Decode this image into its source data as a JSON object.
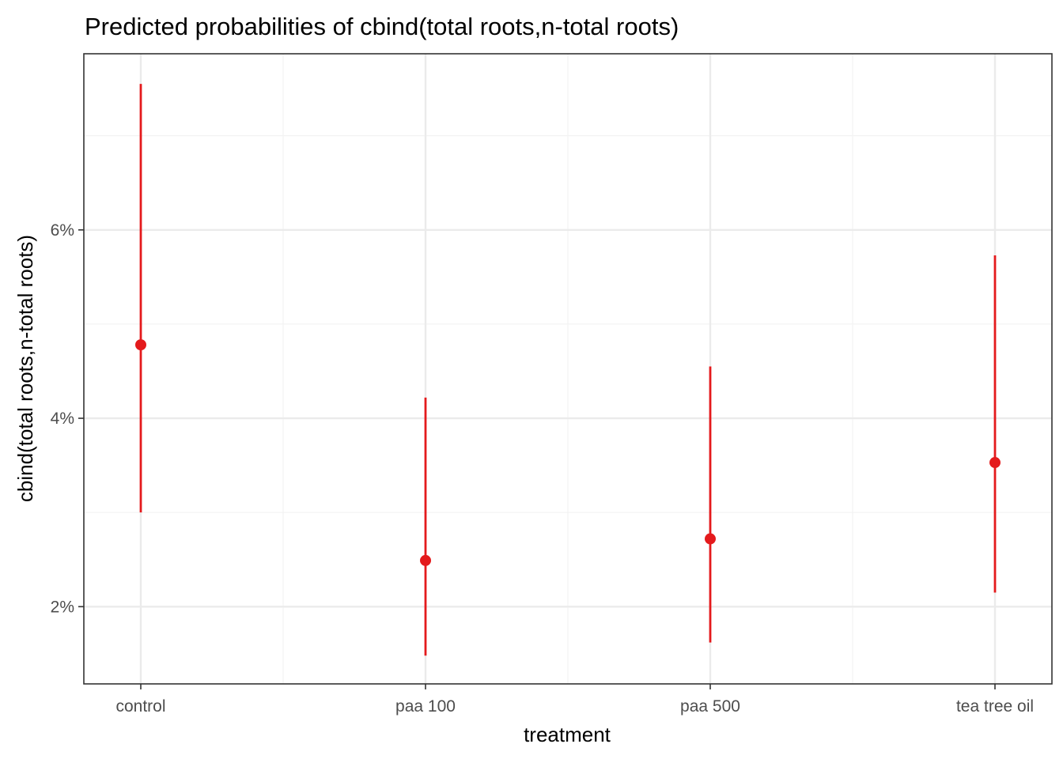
{
  "chart_data": {
    "type": "scatter",
    "title": "Predicted probabilities of cbind(total roots,n-total roots)",
    "xlabel": "treatment",
    "ylabel": "cbind(total roots,n-total roots)",
    "categories": [
      "control",
      "paa 100",
      "paa 500",
      "tea tree oil"
    ],
    "series": [
      {
        "values": [
          4.78,
          2.49,
          2.72,
          3.53
        ],
        "ci_low": [
          3.0,
          1.48,
          1.62,
          2.15
        ],
        "ci_high": [
          7.55,
          4.22,
          4.55,
          5.73
        ]
      }
    ],
    "y_ticks": [
      2,
      4,
      6
    ],
    "y_tick_labels": [
      "2%",
      "4%",
      "6%"
    ],
    "ylim": [
      1.18,
      7.87
    ],
    "grid": true,
    "colors": {
      "points": "#e41a1c",
      "grid_major": "#ebebeb",
      "grid_minor": "#f3f3f3",
      "panel_border": "#333333"
    }
  }
}
